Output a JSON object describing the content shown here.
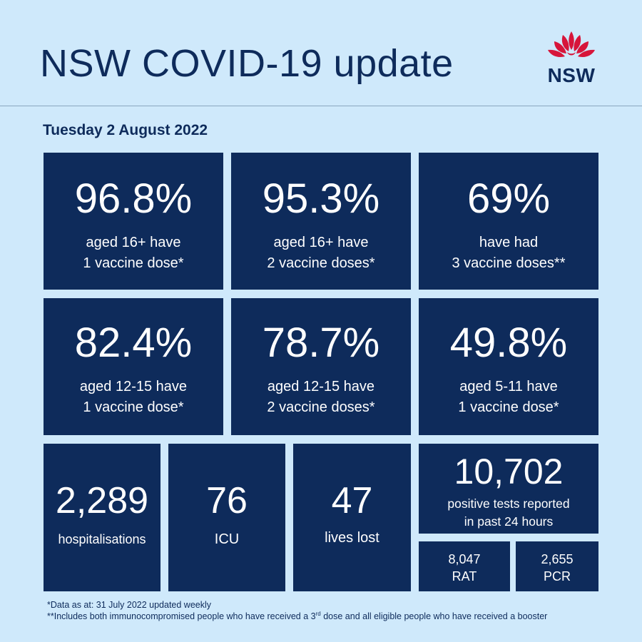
{
  "header": {
    "title": "NSW COVID-19 update",
    "logo_text": "NSW"
  },
  "date": "Tuesday 2 August 2022",
  "tiles": [
    {
      "value": "96.8%",
      "line1": "aged 16+ have",
      "line2": "1 vaccine dose*"
    },
    {
      "value": "95.3%",
      "line1": "aged 16+ have",
      "line2": "2 vaccine doses*"
    },
    {
      "value": "69%",
      "line1": "have had",
      "line2": "3 vaccine doses**"
    },
    {
      "value": "82.4%",
      "line1": "aged 12-15 have",
      "line2": "1 vaccine dose*"
    },
    {
      "value": "78.7%",
      "line1": "aged 12-15 have",
      "line2": "2 vaccine doses*"
    },
    {
      "value": "49.8%",
      "line1": "aged 5-11 have",
      "line2": "1 vaccine dose*"
    }
  ],
  "stats": {
    "hospitalisations": {
      "value": "2,289",
      "label": "hospitalisations"
    },
    "icu": {
      "value": "76",
      "label": "ICU"
    },
    "lives_lost": {
      "value": "47",
      "label": "lives lost"
    },
    "positive_tests": {
      "value": "10,702",
      "line1": "positive tests reported",
      "line2": "in past 24 hours"
    },
    "rat": {
      "value": "8,047",
      "label": "RAT"
    },
    "pcr": {
      "value": "2,655",
      "label": "PCR"
    }
  },
  "footnotes": {
    "note1": "*Data as at: 31 July 2022 updated weekly",
    "note2_part1": "**Includes both immunocompromised people who have received a 3",
    "note2_sup": "rd",
    "note2_part2": " dose and all eligible people who have received a booster"
  },
  "colors": {
    "background": "#cfe9fb",
    "tile": "#0e2b5b",
    "text_dark": "#0e2b5b",
    "logo_red": "#d7153a"
  }
}
